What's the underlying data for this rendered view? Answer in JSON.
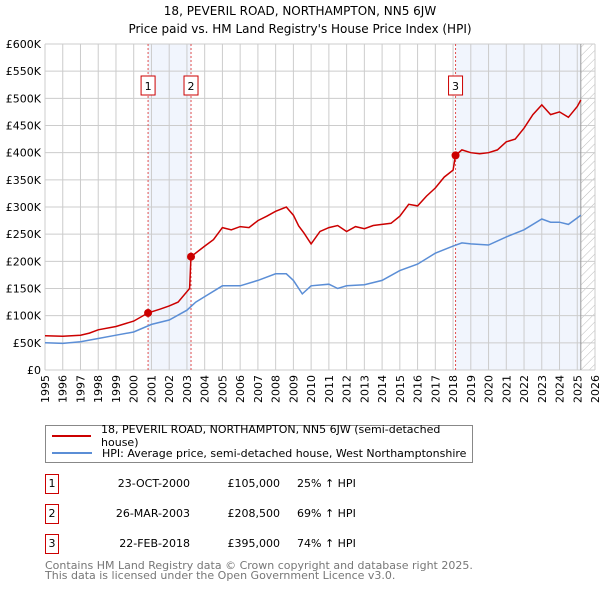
{
  "chart_data": {
    "type": "line",
    "title": "18, PEVERIL ROAD, NORTHAMPTON, NN5 6JW",
    "subtitle": "Price paid vs. HM Land Registry's House Price Index (HPI)",
    "xlim": [
      1995,
      2026
    ],
    "ylim": [
      0,
      600000
    ],
    "grid": true,
    "x_ticks": [
      "1995",
      "1996",
      "1997",
      "1998",
      "1999",
      "2000",
      "2001",
      "2002",
      "2003",
      "2004",
      "2005",
      "2006",
      "2007",
      "2008",
      "2009",
      "2010",
      "2011",
      "2012",
      "2013",
      "2014",
      "2015",
      "2016",
      "2017",
      "2018",
      "2019",
      "2020",
      "2021",
      "2022",
      "2023",
      "2024",
      "2025",
      "2026"
    ],
    "y_ticks": [
      {
        "v": 0,
        "label": "£0"
      },
      {
        "v": 50000,
        "label": "£50K"
      },
      {
        "v": 100000,
        "label": "£100K"
      },
      {
        "v": 150000,
        "label": "£150K"
      },
      {
        "v": 200000,
        "label": "£200K"
      },
      {
        "v": 250000,
        "label": "£250K"
      },
      {
        "v": 300000,
        "label": "£300K"
      },
      {
        "v": 350000,
        "label": "£350K"
      },
      {
        "v": 400000,
        "label": "£400K"
      },
      {
        "v": 450000,
        "label": "£450K"
      },
      {
        "v": 500000,
        "label": "£500K"
      },
      {
        "v": 550000,
        "label": "£550K"
      },
      {
        "v": 600000,
        "label": "£600K"
      }
    ],
    "shaded_ranges": [
      [
        2000.81,
        2003.23
      ],
      [
        2018.14,
        2025.2
      ]
    ],
    "hatched_from": 2025.2,
    "series": [
      {
        "name": "18, PEVERIL ROAD, NORTHAMPTON, NN5 6JW (semi-detached house)",
        "color": "#cc0000",
        "x": [
          1995,
          1996,
          1997,
          1997.5,
          1998,
          1999,
          2000,
          2000.81,
          2001.5,
          2002,
          2002.5,
          2003.15,
          2003.23,
          2004,
          2004.5,
          2005,
          2005.5,
          2006,
          2006.5,
          2007,
          2007.5,
          2008,
          2008.6,
          2009,
          2009.3,
          2009.6,
          2010,
          2010.5,
          2011,
          2011.5,
          2012,
          2012.5,
          2013,
          2013.5,
          2014,
          2014.5,
          2015,
          2015.5,
          2016,
          2016.5,
          2017,
          2017.5,
          2018,
          2018.14,
          2018.5,
          2019,
          2019.5,
          2020,
          2020.5,
          2021,
          2021.5,
          2022,
          2022.5,
          2023,
          2023.5,
          2024,
          2024.5,
          2025,
          2025.2
        ],
        "y": [
          63000,
          62000,
          64000,
          68000,
          74000,
          80000,
          90000,
          105000,
          112000,
          118000,
          125000,
          150000,
          208500,
          228000,
          240000,
          262000,
          258000,
          264000,
          262000,
          275000,
          283000,
          292000,
          300000,
          285000,
          265000,
          252000,
          232000,
          255000,
          262000,
          266000,
          255000,
          264000,
          260000,
          266000,
          268000,
          270000,
          283000,
          305000,
          302000,
          320000,
          335000,
          355000,
          368000,
          395000,
          405000,
          400000,
          398000,
          400000,
          405000,
          420000,
          425000,
          445000,
          470000,
          488000,
          470000,
          475000,
          465000,
          485000,
          497000
        ]
      },
      {
        "name": "HPI: Average price, semi-detached house, West Northamptonshire",
        "color": "#5b8ed6",
        "x": [
          1995,
          1996,
          1997,
          1998,
          1999,
          2000,
          2001,
          2002,
          2003,
          2003.5,
          2004,
          2005,
          2006,
          2007,
          2008,
          2008.6,
          2009,
          2009.5,
          2010,
          2011,
          2011.5,
          2012,
          2013,
          2014,
          2015,
          2016,
          2017,
          2018,
          2018.5,
          2019,
          2020,
          2021,
          2022,
          2023,
          2023.5,
          2024,
          2024.5,
          2025,
          2025.2
        ],
        "y": [
          50000,
          49000,
          52000,
          58000,
          64000,
          70000,
          84000,
          92000,
          110000,
          125000,
          135000,
          155000,
          155000,
          165000,
          177000,
          177000,
          165000,
          140000,
          155000,
          158000,
          150000,
          155000,
          157000,
          165000,
          183000,
          195000,
          215000,
          228000,
          234000,
          232000,
          230000,
          245000,
          258000,
          278000,
          272000,
          272000,
          268000,
          280000,
          285000
        ]
      }
    ],
    "sales": [
      {
        "label": "1",
        "x": 2000.81,
        "y": 105000,
        "date": "23-OCT-2000",
        "price": "£105,000",
        "hpi": "25% ↑ HPI"
      },
      {
        "label": "2",
        "x": 2003.23,
        "y": 208500,
        "date": "26-MAR-2003",
        "price": "£208,500",
        "hpi": "69% ↑ HPI"
      },
      {
        "label": "3",
        "x": 2018.14,
        "y": 395000,
        "date": "22-FEB-2018",
        "price": "£395,000",
        "hpi": "74% ↑ HPI"
      }
    ]
  },
  "legend": {
    "property": "18, PEVERIL ROAD, NORTHAMPTON, NN5 6JW (semi-detached house)",
    "hpi": "HPI: Average price, semi-detached house, West Northamptonshire"
  },
  "footer": {
    "line1": "Contains HM Land Registry data © Crown copyright and database right 2025.",
    "line2": "This data is licensed under the Open Government Licence v3.0."
  }
}
